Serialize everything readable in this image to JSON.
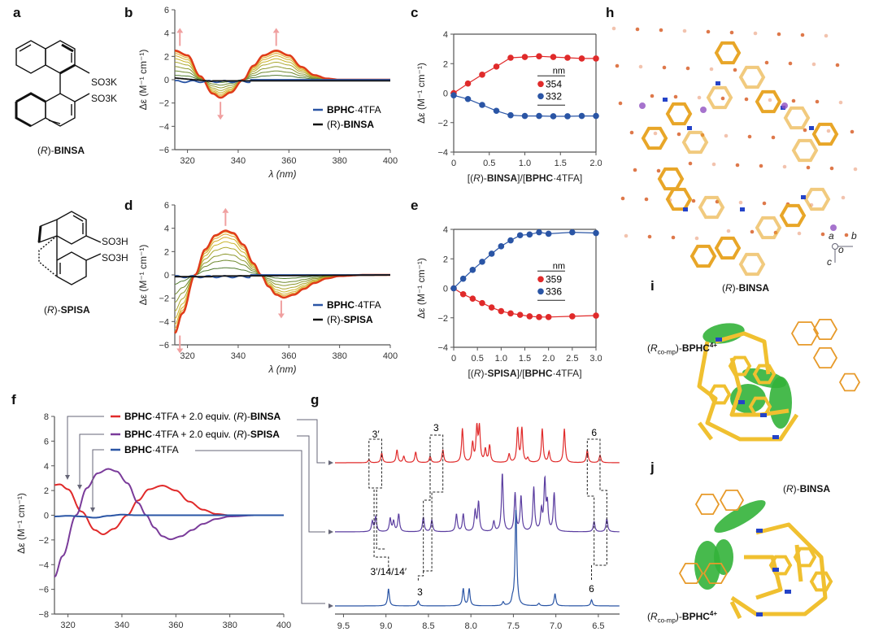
{
  "figure": {
    "panel_letters": [
      "a",
      "b",
      "c",
      "d",
      "e",
      "f",
      "g",
      "h",
      "i",
      "j"
    ]
  },
  "structures": {
    "a": {
      "name_prefix": "(",
      "name_italic": "R",
      "name_suffix": ")-",
      "name_bold": "BINSA",
      "substituent1": "SO3K",
      "substituent2": "SO3K"
    },
    "d": {
      "name_prefix": "(",
      "name_italic": "R",
      "name_suffix": ")-",
      "name_bold": "SPISA",
      "substituent1": "SO3H",
      "substituent2": "SO3H"
    }
  },
  "chart_data": [
    {
      "id": "b",
      "type": "line",
      "title": "",
      "xlabel": "λ (nm)",
      "ylabel": "Δε (M⁻¹ cm⁻¹)",
      "xlim": [
        315,
        400
      ],
      "ylim": [
        -6,
        6
      ],
      "xticks": [
        320,
        340,
        360,
        380,
        400
      ],
      "yticks": [
        -6,
        -4,
        -2,
        0,
        2,
        4,
        6
      ],
      "legend": [
        {
          "label_bold": "BPHC",
          "label_rest": "·4TFA",
          "color": "#2a55a5"
        },
        {
          "label_pre": "(R)-",
          "label_bold": "BINSA",
          "color": "#111111"
        }
      ],
      "legend_position": "bottom-right",
      "titration_amplitudes": [
        0.15,
        0.3,
        0.45,
        0.6,
        0.72,
        0.82,
        0.9,
        0.96,
        1.0
      ],
      "final_series": {
        "name": "BPHC·4TFA + (R)-BINSA (final)",
        "x": [
          315,
          320,
          325,
          330,
          333,
          337,
          342,
          346,
          350,
          355,
          360,
          365,
          370,
          375,
          380,
          390,
          400
        ],
        "y": [
          2.5,
          2.1,
          0.3,
          -1.2,
          -1.55,
          -1.1,
          0.0,
          1.2,
          2.1,
          2.5,
          2.1,
          1.1,
          0.4,
          0.1,
          0.0,
          0.0,
          0.0
        ]
      },
      "annotations": [
        "arrow-up at 317 nm",
        "arrow-down at 333 nm",
        "arrow-up at 355 nm"
      ]
    },
    {
      "id": "c",
      "type": "scatter",
      "xlabel": "[(R)-BINSA]/[BPHC·4TFA]",
      "ylabel": "Δε (M⁻¹ cm⁻¹)",
      "xlim": [
        0,
        2.0
      ],
      "ylim": [
        -4,
        4
      ],
      "xticks": [
        "0",
        "0.5",
        "1.0",
        "1.5",
        "2.0"
      ],
      "yticks": [
        -4,
        -2,
        0,
        2,
        4
      ],
      "legend_title": "nm",
      "series": [
        {
          "name": "354",
          "color": "#e02a2a",
          "x": [
            0,
            0.2,
            0.4,
            0.6,
            0.8,
            1.0,
            1.2,
            1.4,
            1.6,
            1.8,
            2.0
          ],
          "y": [
            0,
            0.65,
            1.25,
            1.8,
            2.4,
            2.45,
            2.5,
            2.45,
            2.4,
            2.35,
            2.35
          ]
        },
        {
          "name": "332",
          "color": "#2a55a5",
          "x": [
            0,
            0.2,
            0.4,
            0.6,
            0.8,
            1.0,
            1.2,
            1.4,
            1.6,
            1.8,
            2.0
          ],
          "y": [
            -0.15,
            -0.4,
            -0.8,
            -1.2,
            -1.5,
            -1.55,
            -1.55,
            -1.57,
            -1.57,
            -1.55,
            -1.55
          ]
        }
      ]
    },
    {
      "id": "d",
      "type": "line",
      "xlabel": "λ (nm)",
      "ylabel": "Δε (M⁻¹ cm⁻¹)",
      "xlim": [
        315,
        400
      ],
      "ylim": [
        -6,
        6
      ],
      "xticks": [
        320,
        340,
        360,
        380,
        400
      ],
      "yticks": [
        -6,
        -4,
        -2,
        0,
        2,
        4,
        6
      ],
      "legend": [
        {
          "label_bold": "BPHC",
          "label_rest": "·4TFA",
          "color": "#2a55a5"
        },
        {
          "label_pre": "(R)-",
          "label_bold": "SPISA",
          "color": "#111111"
        }
      ],
      "legend_position": "bottom-right",
      "titration_amplitudes": [
        0.16,
        0.33,
        0.47,
        0.62,
        0.75,
        0.85,
        0.92,
        0.97,
        1.0
      ],
      "final_series": {
        "name": "BPHC·4TFA + (R)-SPISA (final)",
        "x": [
          315,
          318,
          323,
          327,
          331,
          335,
          338,
          342,
          346,
          349,
          352,
          355,
          358,
          362,
          366,
          370,
          375,
          380,
          390,
          400
        ],
        "y": [
          -5.0,
          -3.3,
          0.0,
          2.2,
          3.4,
          3.8,
          3.6,
          2.6,
          1.0,
          0.0,
          -1.0,
          -1.7,
          -1.95,
          -1.7,
          -1.2,
          -0.7,
          -0.3,
          -0.1,
          0.0,
          0.0
        ]
      },
      "annotations": [
        "arrow-down at 317 nm",
        "arrow-up at 335 nm",
        "arrow-down at 357 nm"
      ]
    },
    {
      "id": "e",
      "type": "scatter",
      "xlabel": "[(R)-SPISA]/[BPHC·4TFA]",
      "ylabel": "Δε (M⁻¹ cm⁻¹)",
      "xlim": [
        0,
        3.0
      ],
      "ylim": [
        -4,
        4
      ],
      "xticks": [
        "0",
        "0.5",
        "1.0",
        "1.5",
        "2.0",
        "2.5",
        "3.0"
      ],
      "yticks": [
        -4,
        -2,
        0,
        2,
        4
      ],
      "legend_title": "nm",
      "series": [
        {
          "name": "359",
          "color": "#e02a2a",
          "x": [
            0,
            0.2,
            0.4,
            0.6,
            0.8,
            1.0,
            1.2,
            1.4,
            1.6,
            1.8,
            2.0,
            2.5,
            3.0
          ],
          "y": [
            0,
            -0.4,
            -0.7,
            -1.0,
            -1.3,
            -1.55,
            -1.7,
            -1.8,
            -1.9,
            -1.95,
            -1.95,
            -1.9,
            -1.85
          ]
        },
        {
          "name": "336",
          "color": "#2a55a5",
          "x": [
            0,
            0.2,
            0.4,
            0.6,
            0.8,
            1.0,
            1.2,
            1.4,
            1.6,
            1.8,
            2.0,
            2.5,
            3.0
          ],
          "y": [
            0,
            0.65,
            1.25,
            1.8,
            2.35,
            2.85,
            3.25,
            3.6,
            3.65,
            3.8,
            3.7,
            3.8,
            3.75
          ]
        }
      ]
    },
    {
      "id": "f",
      "type": "line",
      "xlabel": "λ (nm)",
      "ylabel": "Δε (M⁻¹ cm⁻¹)",
      "xlim": [
        315,
        400
      ],
      "ylim": [
        -8,
        8
      ],
      "xticks": [
        320,
        340,
        360,
        380,
        400
      ],
      "yticks": [
        -8,
        -6,
        -4,
        -2,
        0,
        2,
        4,
        6,
        8
      ],
      "legend_position": "top",
      "series": [
        {
          "label_bold": "BPHC",
          "label_rest": "·4TFA + 2.0 equiv. (",
          "label_italic": "R",
          "label_rest2": ")-",
          "label_bold2": "BINSA",
          "color": "#e02a2a",
          "x": [
            315,
            317,
            320,
            325,
            330,
            333,
            337,
            342,
            346,
            350,
            355,
            360,
            365,
            370,
            375,
            380,
            390,
            400
          ],
          "y": [
            2.45,
            2.5,
            2.1,
            0.3,
            -1.2,
            -1.55,
            -1.1,
            0.0,
            1.2,
            2.1,
            2.4,
            2.0,
            1.1,
            0.45,
            0.1,
            0.0,
            0.0,
            0.0
          ]
        },
        {
          "label_bold": "BPHC",
          "label_rest": "·4TFA + 2.0 equiv. (",
          "label_italic": "R",
          "label_rest2": ")-",
          "label_bold2": "SPISA",
          "color": "#7a3b9a",
          "x": [
            315,
            318,
            323,
            327,
            331,
            335,
            338,
            342,
            346,
            349,
            352,
            355,
            358,
            362,
            366,
            370,
            375,
            380,
            390,
            400
          ],
          "y": [
            -5.0,
            -3.3,
            0.0,
            2.2,
            3.4,
            3.75,
            3.55,
            2.6,
            1.0,
            0.0,
            -1.0,
            -1.7,
            -1.95,
            -1.7,
            -1.2,
            -0.7,
            -0.3,
            -0.1,
            0.0,
            0.0
          ]
        },
        {
          "label_bold": "BPHC",
          "label_rest": "·4TFA",
          "color": "#2a55a5",
          "x": [
            315,
            320,
            325,
            330,
            335,
            340,
            345,
            350,
            360,
            370,
            380,
            390,
            400
          ],
          "y": [
            -0.1,
            -0.05,
            -0.1,
            -0.2,
            -0.05,
            0.05,
            0.0,
            0.0,
            0.0,
            0.0,
            0.0,
            0.0,
            0.0
          ]
        }
      ]
    },
    {
      "id": "g",
      "type": "line",
      "xlabel": "δ (ppm)",
      "xlim": [
        9.6,
        6.25
      ],
      "xticks": [
        "9.5",
        "9.0",
        "8.5",
        "8.0",
        "7.5",
        "7.0",
        "6.5"
      ],
      "series": [
        {
          "name": "BPHC·4TFA + 2.0 equiv. (R)-BINSA",
          "color": "#e02a2a",
          "peaks": [
            [
              9.2,
              0.15
            ],
            [
              9.05,
              0.45
            ],
            [
              8.87,
              0.6
            ],
            [
              8.79,
              0.3
            ],
            [
              8.65,
              0.5
            ],
            [
              8.48,
              0.3
            ],
            [
              8.33,
              0.6
            ],
            [
              8.1,
              1.6
            ],
            [
              7.98,
              0.9
            ],
            [
              7.93,
              1.6
            ],
            [
              7.9,
              1.6
            ],
            [
              7.83,
              0.6
            ],
            [
              7.78,
              0.8
            ],
            [
              7.55,
              0.4
            ],
            [
              7.45,
              1.6
            ],
            [
              7.4,
              1.6
            ],
            [
              7.33,
              0.2
            ],
            [
              7.16,
              1.6
            ],
            [
              7.08,
              0.5
            ],
            [
              6.9,
              1.6
            ],
            [
              6.63,
              0.6
            ],
            [
              6.48,
              0.35
            ]
          ]
        },
        {
          "name": "BPHC·4TFA + 2.0 equiv. (R)-SPISA",
          "color": "#5b3ea0",
          "peaks": [
            [
              9.16,
              0.35
            ],
            [
              9.12,
              0.5
            ],
            [
              8.95,
              0.45
            ],
            [
              8.91,
              0.35
            ],
            [
              8.85,
              0.6
            ],
            [
              8.56,
              0.5
            ],
            [
              8.46,
              0.4
            ],
            [
              8.17,
              0.6
            ],
            [
              8.09,
              0.6
            ],
            [
              7.95,
              0.7
            ],
            [
              7.91,
              1.0
            ],
            [
              7.73,
              0.35
            ],
            [
              7.63,
              2.0
            ],
            [
              7.48,
              1.3
            ],
            [
              7.41,
              1.2
            ],
            [
              7.26,
              1.5
            ],
            [
              7.17,
              0.7
            ],
            [
              7.13,
              1.7
            ],
            [
              7.1,
              0.9
            ],
            [
              7.02,
              1.3
            ],
            [
              6.55,
              0.35
            ],
            [
              6.4,
              0.45
            ]
          ]
        },
        {
          "name": "BPHC·4TFA",
          "color": "#2a55a5",
          "peaks": [
            [
              8.97,
              0.7
            ],
            [
              8.62,
              0.2
            ],
            [
              8.09,
              0.7
            ],
            [
              8.02,
              0.7
            ],
            [
              7.62,
              0.15
            ],
            [
              7.51,
              0.2
            ],
            [
              7.47,
              4.0
            ],
            [
              7.2,
              0.1
            ],
            [
              7.01,
              0.5
            ],
            [
              6.58,
              0.25
            ]
          ]
        }
      ],
      "annotations": [
        "3′",
        "3",
        "6",
        "3′/14/14′",
        "3",
        "6"
      ]
    }
  ],
  "structure_images": {
    "h": {
      "axis_labels": {
        "a": "a",
        "b": "b",
        "c": "c",
        "o": "o"
      }
    },
    "i": {
      "label_binsa_pre": "(",
      "label_binsa_italic": "R",
      "label_binsa_post": ")-",
      "label_binsa_bold": "BINSA",
      "label_bphc_pre": "(",
      "label_bphc_italic": "R",
      "label_bphc_sub": "co-mp",
      "label_bphc_post": ")-",
      "label_bphc_bold": "BPHC",
      "label_bphc_sup": "4+"
    },
    "j": {
      "label_binsa_pre": "(",
      "label_binsa_italic": "R",
      "label_binsa_post": ")-",
      "label_binsa_bold": "BINSA",
      "label_bphc_pre": "(",
      "label_bphc_italic": "R",
      "label_bphc_sub": "co-mp",
      "label_bphc_post": ")-",
      "label_bphc_bold": "BPHC",
      "label_bphc_sup": "4+"
    }
  }
}
